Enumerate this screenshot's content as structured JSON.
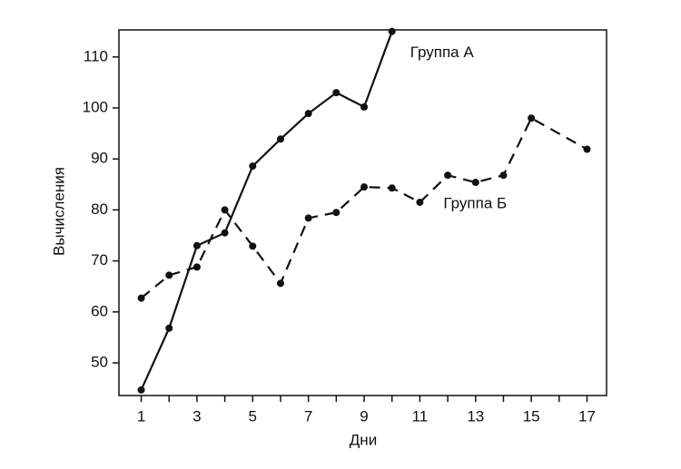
{
  "chart_data": {
    "type": "line",
    "x_label": "Дни",
    "y_label": "Вычисления",
    "xlim": [
      0.2,
      17.7
    ],
    "xticks": [
      1,
      3,
      5,
      7,
      9,
      11,
      13,
      15,
      17
    ],
    "xminorticks": [
      2,
      4,
      6,
      8,
      10,
      12,
      14,
      16
    ],
    "ylim": [
      43.6,
      115.3
    ],
    "yticks": [
      50,
      60,
      70,
      80,
      90,
      100,
      110
    ],
    "series": [
      {
        "name": "Группа А",
        "color": "#111111",
        "dash": false,
        "x": [
          1,
          2,
          3,
          4,
          5,
          6,
          7,
          8,
          9,
          10
        ],
        "values": [
          44.7,
          56.8,
          73.0,
          75.5,
          88.6,
          93.9,
          98.9,
          103.0,
          100.2,
          115.0
        ]
      },
      {
        "name": "Группа Б",
        "color": "#111111",
        "dash": true,
        "x": [
          1,
          2,
          3,
          4,
          5,
          6,
          7,
          8,
          9,
          10,
          11,
          12,
          13,
          14,
          15,
          17
        ],
        "values": [
          62.7,
          67.2,
          68.8,
          80.0,
          72.9,
          65.6,
          78.4,
          79.5,
          84.5,
          84.3,
          81.5,
          86.8,
          85.4,
          86.8,
          98.0,
          91.9
        ]
      }
    ]
  }
}
